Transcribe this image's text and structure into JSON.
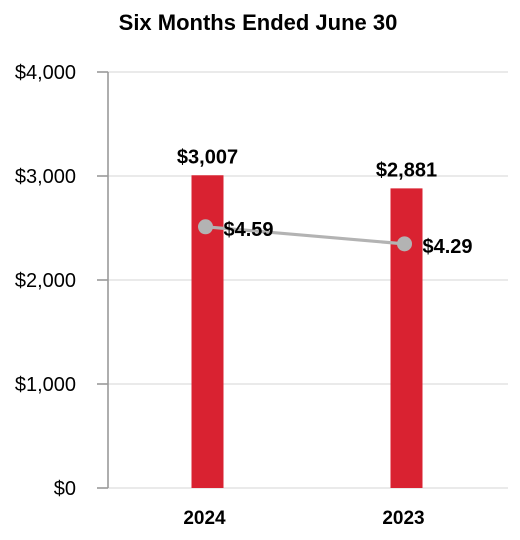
{
  "chart_data": {
    "type": "bar",
    "title": "Six Months Ended June 30",
    "xlabel": "",
    "ylabel": "",
    "categories": [
      "2024",
      "2023"
    ],
    "ylim": [
      0,
      4000
    ],
    "yticks": [
      0,
      1000,
      2000,
      3000,
      4000
    ],
    "ytick_labels": [
      "$0",
      "$1,000",
      "$2,000",
      "$3,000",
      "$4,000"
    ],
    "grid": true,
    "legend": "none",
    "series": [
      {
        "type": "bar",
        "values": [
          3007,
          2881
        ],
        "labels": [
          "$3,007",
          "$2,881"
        ],
        "color": "#d92231"
      },
      {
        "type": "line",
        "values": [
          4.59,
          4.29
        ],
        "labels": [
          "$4.59",
          "$4.29"
        ],
        "color": "#b3b3b3",
        "secondary_axis": true,
        "secondary_ylim": [
          0,
          7.31
        ]
      }
    ]
  }
}
